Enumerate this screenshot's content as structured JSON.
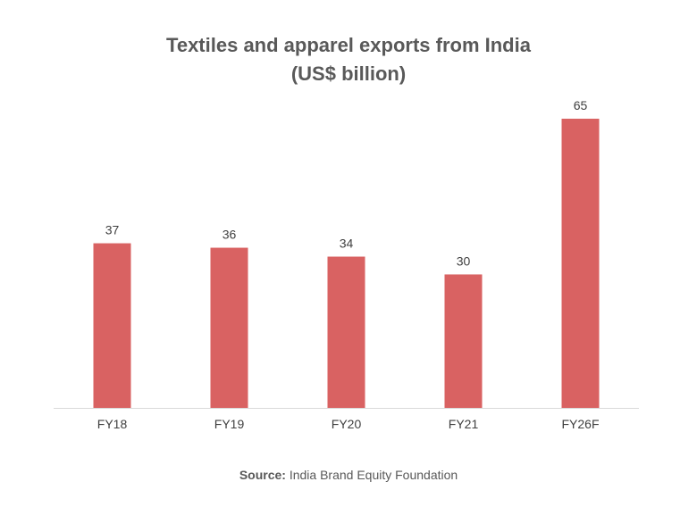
{
  "chart_data": {
    "type": "bar",
    "title": "Textiles and apparel exports from India",
    "subtitle": "(US$ billion)",
    "categories": [
      "FY18",
      "FY19",
      "FY20",
      "FY21",
      "FY26F"
    ],
    "values": [
      37,
      36,
      34,
      30,
      65
    ],
    "data_labels": [
      "37",
      "36",
      "34",
      "30",
      "65"
    ],
    "xlabel": "",
    "ylabel": "",
    "ylim": [
      0,
      65
    ],
    "grid": false,
    "legend": "none",
    "bar_color": "#d96262"
  },
  "source": {
    "label": "Source:",
    "text": "India Brand Equity Foundation"
  }
}
